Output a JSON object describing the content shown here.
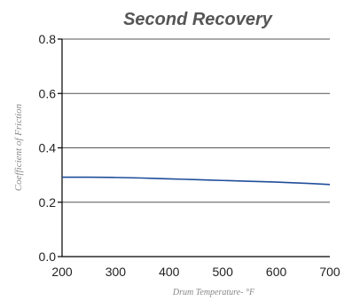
{
  "chart_data": {
    "type": "line",
    "title": "Second Recovery",
    "xlabel": "Drum Temperature- °F",
    "ylabel": "Coefficient of Friction",
    "xlim": [
      200,
      700
    ],
    "ylim": [
      0.0,
      0.8
    ],
    "x_ticks": [
      "200",
      "300",
      "400",
      "500",
      "600",
      "700"
    ],
    "y_ticks": [
      "0.0",
      "0.2",
      "0.4",
      "0.6",
      "0.8"
    ],
    "grid": true,
    "legend": "none",
    "colors": {
      "series": "#1f4e9a",
      "title": "#555555",
      "axis_label": "#888888"
    },
    "series": [
      {
        "x": [
          200,
          250,
          300,
          350,
          400,
          450,
          500,
          550,
          600,
          650,
          700
        ],
        "y": [
          0.292,
          0.292,
          0.291,
          0.289,
          0.286,
          0.283,
          0.28,
          0.277,
          0.274,
          0.27,
          0.265
        ]
      }
    ]
  }
}
